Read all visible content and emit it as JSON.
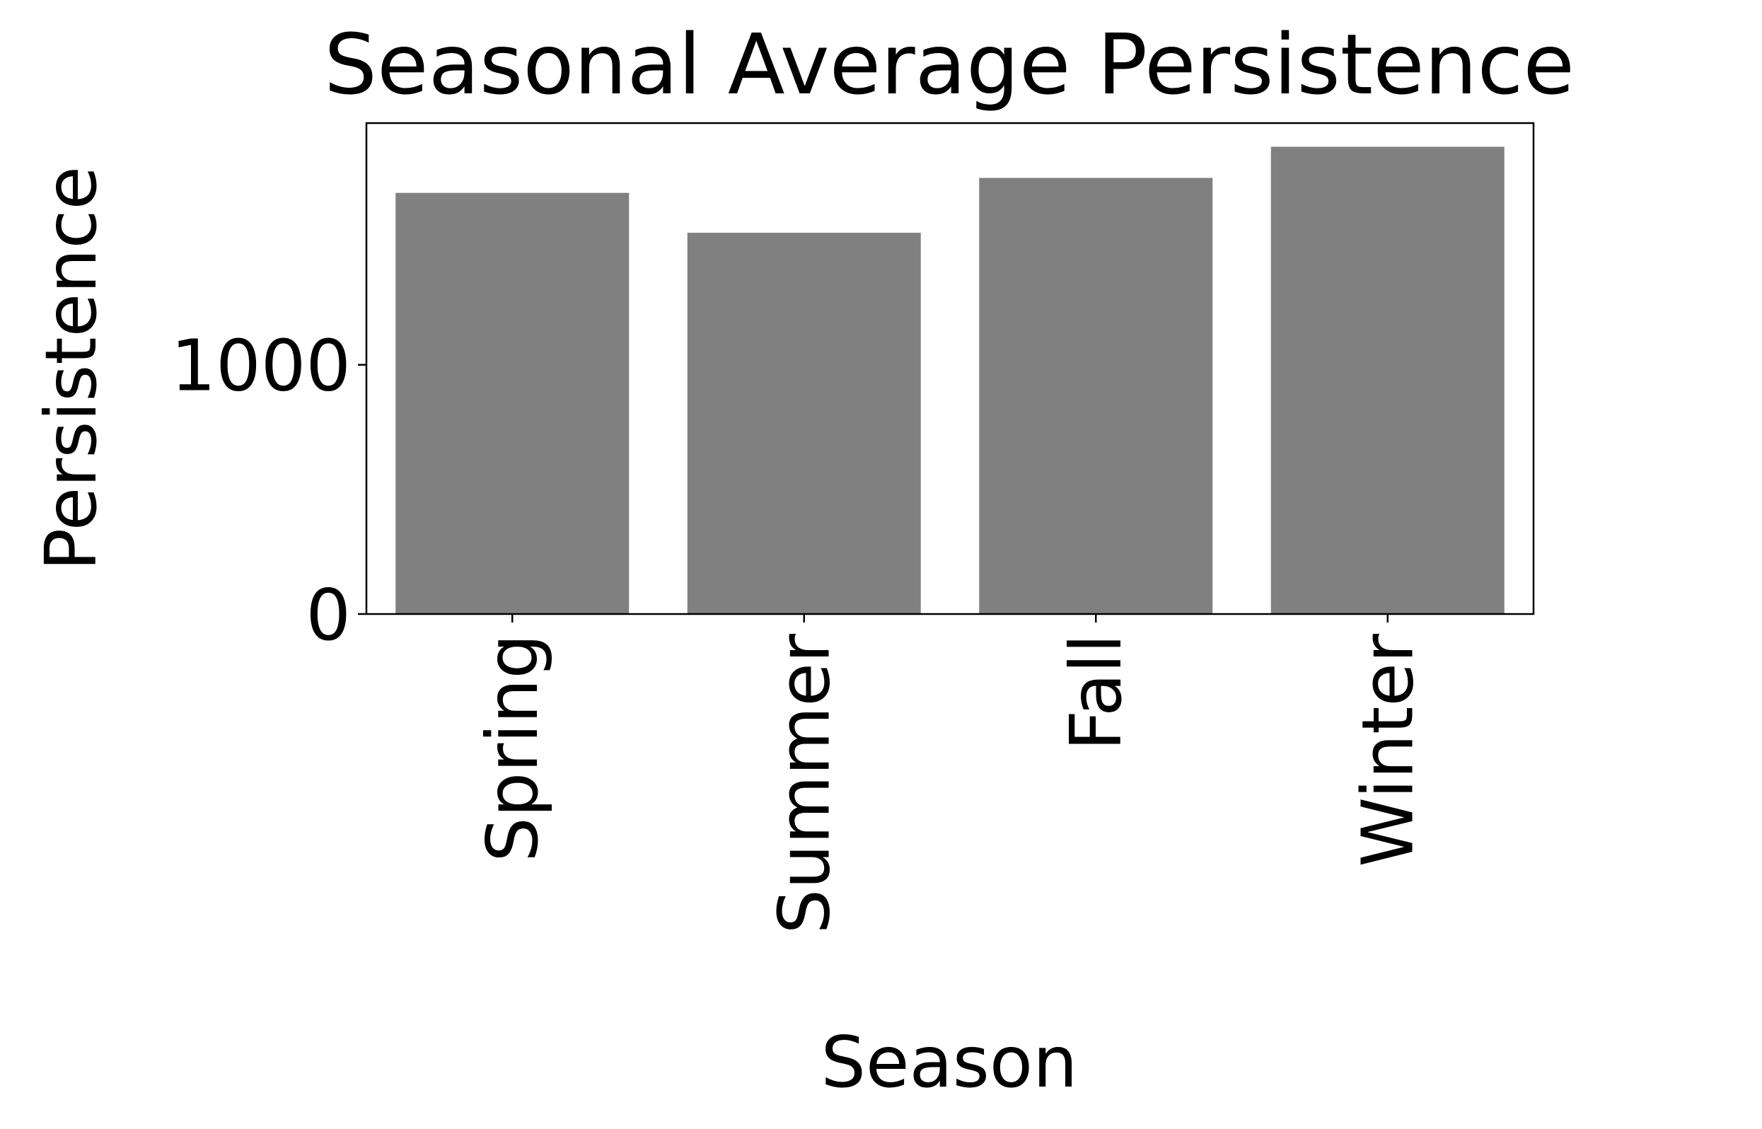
{
  "chart_data": {
    "type": "bar",
    "title": "Seasonal Average Persistence",
    "xlabel": "Season",
    "ylabel": "Persistence",
    "categories": [
      "Spring",
      "Summer",
      "Fall",
      "Winter"
    ],
    "values": [
      1690,
      1530,
      1750,
      1875
    ],
    "ylim": [
      0,
      1970
    ],
    "yticks": [
      0,
      1000
    ],
    "ytick_labels": [
      "0",
      "1000"
    ],
    "bar_color": "#808080",
    "grid": false,
    "legend": "none"
  }
}
